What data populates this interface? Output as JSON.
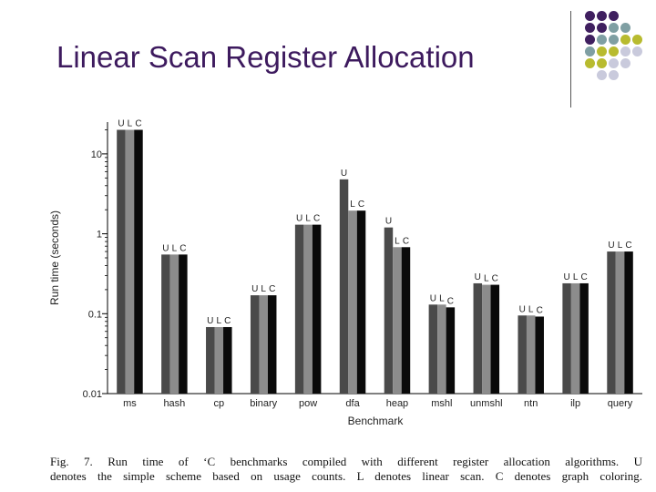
{
  "slide": {
    "title": "Linear Scan Register Allocation"
  },
  "decor": {
    "dot_colors": {
      "purple": "#3f1f5f",
      "teal": "#7f9fa3",
      "olive": "#b8bb2f",
      "lavender": "#c9cadc"
    }
  },
  "caption": {
    "line1": "Fig. 7.  Run time of ‘C benchmarks compiled with different register allocation algorithms.  U",
    "line2": "denotes the simple scheme based on usage counts. L denotes linear scan. C denotes graph coloring."
  },
  "chart_data": {
    "type": "bar",
    "title": "",
    "xlabel": "Benchmark",
    "ylabel": "Run time (seconds)",
    "yscale": "log",
    "ylim": [
      0.01,
      25
    ],
    "yticks": [
      0.01,
      0.1,
      1,
      10
    ],
    "ytick_labels": [
      "0.01",
      "0.1",
      "1",
      "10"
    ],
    "grid": false,
    "categories": [
      "ms",
      "hash",
      "cp",
      "binary",
      "pow",
      "dfa",
      "heap",
      "mshl",
      "unmshl",
      "ntn",
      "ilp",
      "query"
    ],
    "series": [
      {
        "name": "U",
        "color": "#4a4a4a",
        "values": [
          20,
          0.55,
          0.068,
          0.17,
          1.3,
          4.8,
          1.2,
          0.13,
          0.24,
          0.095,
          0.24,
          0.6
        ]
      },
      {
        "name": "L",
        "color": "#8c8c8c",
        "values": [
          20,
          0.55,
          0.068,
          0.17,
          1.3,
          1.95,
          0.68,
          0.13,
          0.23,
          0.095,
          0.24,
          0.6
        ]
      },
      {
        "name": "C",
        "color": "#0a0a0a",
        "values": [
          20,
          0.55,
          0.068,
          0.17,
          1.3,
          1.95,
          0.68,
          0.12,
          0.23,
          0.092,
          0.24,
          0.6
        ]
      }
    ]
  }
}
